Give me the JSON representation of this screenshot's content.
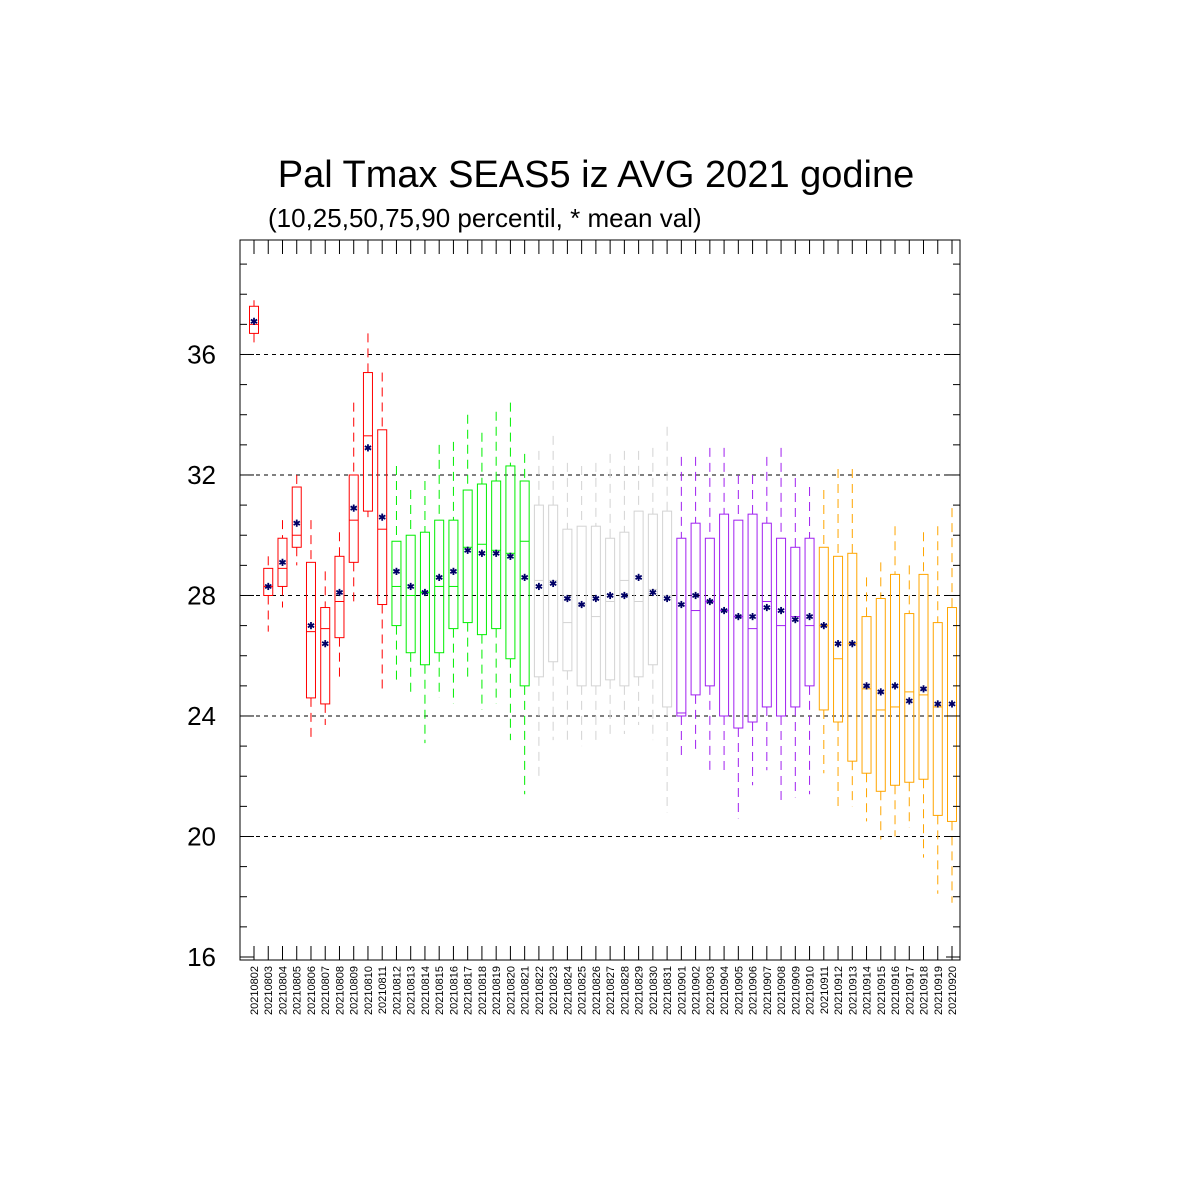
{
  "chart_data": {
    "type": "box",
    "title": "Pal Tmax SEAS5 iz AVG 2021 godine",
    "subtitle": "(10,25,50,75,90 percentil, * mean val)",
    "xlabel": "",
    "ylabel": "",
    "ylim": [
      15.9,
      39.8
    ],
    "yticks": [
      "16",
      "20",
      "24",
      "28",
      "32",
      "36"
    ],
    "grid_y": [
      20,
      24,
      28,
      32,
      36
    ],
    "mean_color": "#000066",
    "categories": [
      "20210802",
      "20210803",
      "20210804",
      "20210805",
      "20210806",
      "20210807",
      "20210808",
      "20210809",
      "20210810",
      "20210811",
      "20210812",
      "20210813",
      "20210814",
      "20210815",
      "20210816",
      "20210817",
      "20210818",
      "20210819",
      "20210820",
      "20210821",
      "20210822",
      "20210823",
      "20210824",
      "20210825",
      "20210826",
      "20210827",
      "20210828",
      "20210829",
      "20210830",
      "20210831",
      "20210901",
      "20210902",
      "20210903",
      "20210904",
      "20210905",
      "20210906",
      "20210907",
      "20210908",
      "20210909",
      "20210910",
      "20210911",
      "20210912",
      "20210913",
      "20210914",
      "20210915",
      "20210916",
      "20210917",
      "20210918",
      "20210919",
      "20210920"
    ],
    "colors": [
      "#ff0000",
      "#ff0000",
      "#ff0000",
      "#ff0000",
      "#ff0000",
      "#ff0000",
      "#ff0000",
      "#ff0000",
      "#ff0000",
      "#ff0000",
      "#00ee00",
      "#00ee00",
      "#00ee00",
      "#00ee00",
      "#00ee00",
      "#00ee00",
      "#00ee00",
      "#00ee00",
      "#00ee00",
      "#00ee00",
      "#d3d3d3",
      "#d3d3d3",
      "#d3d3d3",
      "#d3d3d3",
      "#d3d3d3",
      "#d3d3d3",
      "#d3d3d3",
      "#d3d3d3",
      "#d3d3d3",
      "#d3d3d3",
      "#a020f0",
      "#a020f0",
      "#a020f0",
      "#a020f0",
      "#a020f0",
      "#a020f0",
      "#a020f0",
      "#a020f0",
      "#a020f0",
      "#a020f0",
      "#ffa500",
      "#ffa500",
      "#ffa500",
      "#ffa500",
      "#ffa500",
      "#ffa500",
      "#ffa500",
      "#ffa500",
      "#ffa500",
      "#ffa500"
    ],
    "p10": [
      36.4,
      26.8,
      27.6,
      29.0,
      23.3,
      23.7,
      25.3,
      27.7,
      30.6,
      24.8,
      25.1,
      24.8,
      23.1,
      24.6,
      24.4,
      25.2,
      24.2,
      24.4,
      23.2,
      21.4,
      22.0,
      23.2,
      23.2,
      23.0,
      23.1,
      23.4,
      23.4,
      23.7,
      23.2,
      20.8,
      22.6,
      22.8,
      22.1,
      22.2,
      20.6,
      21.7,
      22.2,
      21.2,
      21.3,
      21.4,
      22.1,
      21.0,
      21.0,
      20.5,
      19.9,
      20.0,
      20.3,
      19.3,
      18.1,
      17.8
    ],
    "p25": [
      36.7,
      28.0,
      28.3,
      29.6,
      24.6,
      24.4,
      26.6,
      29.1,
      30.8,
      27.7,
      27.0,
      26.1,
      25.7,
      26.1,
      26.9,
      27.1,
      26.7,
      26.9,
      25.9,
      25.0,
      25.3,
      25.8,
      25.5,
      25.0,
      25.0,
      25.2,
      25.0,
      25.3,
      25.7,
      24.3,
      24.0,
      24.7,
      25.0,
      24.0,
      23.6,
      23.8,
      24.3,
      24.0,
      24.3,
      25.0,
      24.2,
      23.8,
      22.5,
      22.1,
      21.5,
      21.7,
      21.8,
      21.9,
      20.7,
      20.5
    ],
    "p50": [
      37.0,
      28.3,
      28.9,
      30.0,
      26.8,
      26.9,
      27.8,
      30.5,
      33.3,
      30.2,
      28.3,
      28.0,
      28.1,
      28.3,
      28.3,
      29.6,
      29.7,
      29.5,
      29.4,
      29.8,
      28.5,
      28.5,
      27.1,
      27.7,
      27.3,
      27.8,
      28.5,
      27.8,
      28.2,
      28.0,
      24.1,
      27.5,
      27.8,
      27.5,
      27.3,
      26.9,
      27.8,
      27.0,
      27.3,
      27.0,
      27.0,
      25.9,
      26.4,
      24.9,
      24.2,
      24.3,
      24.8,
      24.7,
      24.3,
      24.0
    ],
    "p75": [
      37.6,
      28.9,
      29.9,
      31.6,
      29.1,
      27.6,
      29.3,
      32.0,
      35.4,
      33.5,
      29.8,
      30.0,
      30.1,
      30.5,
      30.5,
      31.5,
      31.7,
      31.8,
      32.3,
      31.8,
      31.0,
      31.0,
      30.2,
      30.3,
      30.3,
      29.9,
      30.1,
      30.8,
      30.7,
      30.8,
      29.9,
      30.4,
      29.9,
      30.7,
      30.5,
      30.7,
      30.4,
      29.9,
      29.6,
      29.9,
      29.6,
      29.3,
      29.4,
      27.3,
      27.9,
      28.7,
      27.4,
      28.7,
      27.1,
      27.6
    ],
    "p90": [
      37.8,
      29.3,
      30.5,
      32.0,
      30.5,
      28.8,
      30.1,
      34.4,
      36.7,
      35.4,
      32.3,
      31.5,
      31.8,
      33.0,
      33.1,
      34.0,
      33.4,
      34.1,
      34.4,
      32.7,
      32.8,
      33.3,
      32.4,
      32.3,
      32.4,
      32.7,
      32.8,
      32.8,
      32.9,
      33.6,
      32.6,
      32.6,
      32.9,
      32.9,
      32.0,
      32.0,
      32.6,
      32.9,
      31.9,
      31.6,
      31.5,
      32.2,
      32.2,
      28.6,
      29.1,
      30.3,
      29.0,
      30.1,
      30.3,
      30.9
    ],
    "mean": [
      37.1,
      28.3,
      29.1,
      30.4,
      27.0,
      26.4,
      28.1,
      30.9,
      32.9,
      30.6,
      28.8,
      28.3,
      28.1,
      28.6,
      28.8,
      29.5,
      29.4,
      29.4,
      29.3,
      28.6,
      28.3,
      28.4,
      27.9,
      27.7,
      27.9,
      28.0,
      28.0,
      28.6,
      28.1,
      27.9,
      27.7,
      28.0,
      27.8,
      27.5,
      27.3,
      27.3,
      27.6,
      27.5,
      27.2,
      27.3,
      27.0,
      26.4,
      26.4,
      25.0,
      24.8,
      25.0,
      24.5,
      24.9,
      24.4,
      24.4
    ]
  }
}
